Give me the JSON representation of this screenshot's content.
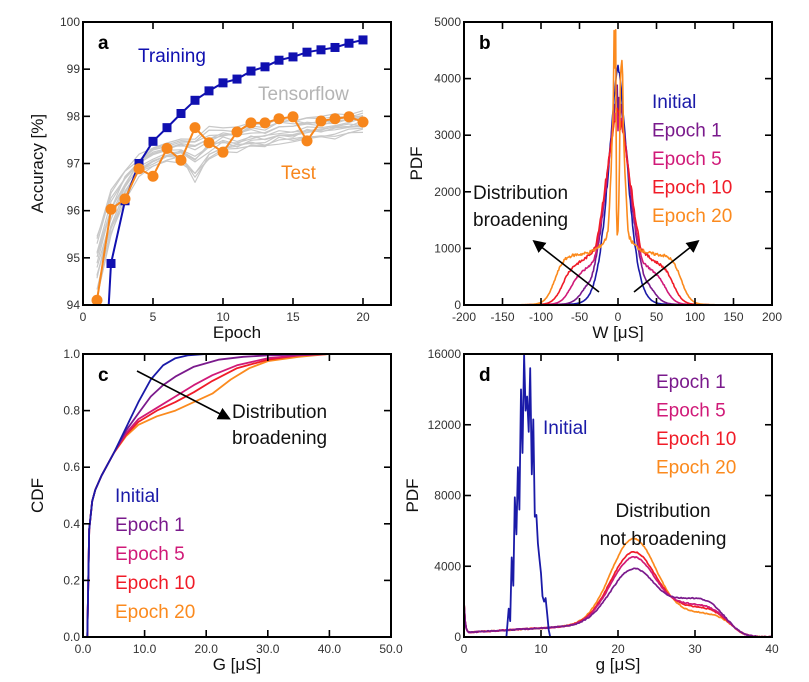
{
  "chart_data": [
    {
      "id": "a",
      "type": "line",
      "panel_label": "a",
      "xlabel": "Epoch",
      "ylabel": "Accuracy [%]",
      "xlim": [
        0,
        22
      ],
      "ylim": [
        94,
        100
      ],
      "xticks": [
        0,
        5,
        10,
        15,
        20
      ],
      "yticks": [
        94,
        95,
        96,
        97,
        98,
        99,
        100
      ],
      "series": [
        {
          "name": "Training",
          "color": "#1010b0",
          "marker": "square",
          "x": [
            2,
            3,
            4,
            5,
            6,
            7,
            8,
            9,
            10,
            11,
            12,
            13,
            14,
            15,
            16,
            17,
            18,
            19,
            20
          ],
          "y": [
            94.88,
            96.21,
            97.0,
            97.47,
            97.76,
            98.06,
            98.34,
            98.54,
            98.71,
            98.79,
            98.96,
            99.05,
            99.19,
            99.26,
            99.36,
            99.41,
            99.46,
            99.55,
            99.62
          ],
          "from_below_at_x": 1.8
        },
        {
          "name": "Test",
          "color": "#f7861c",
          "marker": "circle",
          "x": [
            1,
            2,
            3,
            4,
            5,
            6,
            7,
            8,
            9,
            10,
            11,
            12,
            13,
            14,
            15,
            16,
            17,
            18,
            19,
            20
          ],
          "y": [
            94.1,
            96.03,
            96.25,
            96.89,
            96.73,
            97.32,
            97.07,
            97.76,
            97.44,
            97.24,
            97.67,
            97.86,
            97.86,
            97.95,
            97.99,
            97.48,
            97.9,
            97.95,
            97.99,
            97.88
          ]
        },
        {
          "name": "Tensorflow",
          "color": "#c8c8c8",
          "marker": "none",
          "band": true,
          "x": [
            1,
            2,
            3,
            4,
            5,
            6,
            7,
            8,
            9,
            10,
            11,
            12,
            13,
            14,
            15,
            16,
            17,
            18,
            19,
            20
          ],
          "y_low": [
            94.0,
            95.4,
            96.2,
            96.7,
            96.9,
            97.0,
            97.0,
            96.6,
            97.0,
            97.2,
            97.2,
            97.3,
            97.3,
            97.4,
            97.4,
            97.5,
            97.5,
            97.5,
            97.6,
            97.6
          ],
          "y_high": [
            95.7,
            96.5,
            96.9,
            97.2,
            97.4,
            97.5,
            97.6,
            97.7,
            97.8,
            97.8,
            97.8,
            97.9,
            97.9,
            98.0,
            98.0,
            98.0,
            98.0,
            98.1,
            98.1,
            98.2
          ]
        }
      ],
      "annotations": [
        {
          "text": "Training",
          "color": "#1010b0"
        },
        {
          "text": "Tensorflow",
          "color": "#b4b4b4"
        },
        {
          "text": "Test",
          "color": "#f7861c"
        }
      ]
    },
    {
      "id": "b",
      "type": "line",
      "panel_label": "b",
      "xlabel": "W [μS]",
      "ylabel": "PDF",
      "xlim": [
        -200,
        200
      ],
      "ylim": [
        0,
        5000
      ],
      "xticks": [
        -200,
        -150,
        -100,
        -50,
        0,
        50,
        100,
        150,
        200
      ],
      "yticks": [
        0,
        1000,
        2000,
        3000,
        4000,
        5000
      ],
      "series": [
        {
          "name": "Initial",
          "color": "#1a1aa8",
          "peak": 4150,
          "width_sigma": 18,
          "shoulder": 0,
          "edge": 45
        },
        {
          "name": "Epoch 1",
          "color": "#7a1a8c",
          "peak": 3700,
          "width_sigma": 22,
          "shoulder": 350,
          "edge": 65
        },
        {
          "name": "Epoch 5",
          "color": "#d01a78",
          "peak": 3500,
          "width_sigma": 24,
          "shoulder": 550,
          "edge": 80
        },
        {
          "name": "Epoch 10",
          "color": "#f01c28",
          "peak": 3400,
          "width_sigma": 26,
          "shoulder": 700,
          "edge": 90
        },
        {
          "name": "Epoch 20",
          "color": "#fb8a1e",
          "peak": 4900,
          "width_sigma": 14,
          "shoulder": 880,
          "edge": 100
        }
      ],
      "annotations": [
        {
          "text": "Distribution"
        },
        {
          "text": "broadening"
        }
      ],
      "legend": "right"
    },
    {
      "id": "c",
      "type": "line",
      "panel_label": "c",
      "xlabel": "G [μS]",
      "ylabel": "CDF",
      "xlim": [
        0,
        50
      ],
      "ylim": [
        0.0,
        1.0
      ],
      "xticks": [
        0,
        10,
        20,
        30,
        40,
        50
      ],
      "yticks": [
        0.0,
        0.2,
        0.4,
        0.6,
        0.8,
        1.0
      ],
      "series": [
        {
          "name": "Initial",
          "color": "#1a1aa8",
          "x": [
            0,
            0.7,
            1,
            1.5,
            2,
            3,
            5,
            7,
            9,
            11,
            13,
            15,
            17,
            20,
            25,
            50
          ],
          "y": [
            0,
            0,
            0.38,
            0.48,
            0.52,
            0.57,
            0.65,
            0.74,
            0.83,
            0.91,
            0.96,
            0.985,
            0.995,
            1.0,
            1.0,
            1.0
          ]
        },
        {
          "name": "Epoch 1",
          "color": "#7a1a8c",
          "x": [
            0,
            0.7,
            1,
            1.5,
            2,
            3,
            5,
            7,
            9,
            11,
            13,
            15,
            18,
            22,
            26,
            30,
            40,
            50
          ],
          "y": [
            0,
            0,
            0.38,
            0.48,
            0.52,
            0.57,
            0.65,
            0.73,
            0.79,
            0.85,
            0.89,
            0.92,
            0.955,
            0.98,
            0.99,
            0.995,
            1.0,
            1.0
          ]
        },
        {
          "name": "Epoch 5",
          "color": "#d01a78",
          "x": [
            0,
            0.7,
            1,
            1.5,
            2,
            3,
            5,
            7,
            9,
            12,
            15,
            18,
            21,
            25,
            30,
            35,
            40,
            50
          ],
          "y": [
            0,
            0,
            0.38,
            0.48,
            0.52,
            0.57,
            0.65,
            0.72,
            0.77,
            0.81,
            0.85,
            0.89,
            0.925,
            0.96,
            0.985,
            0.995,
            1.0,
            1.0
          ]
        },
        {
          "name": "Epoch 10",
          "color": "#f01c28",
          "x": [
            0,
            0.7,
            1,
            1.5,
            2,
            3,
            5,
            7,
            9,
            12,
            15,
            18,
            21,
            25,
            30,
            35,
            40,
            50
          ],
          "y": [
            0,
            0,
            0.38,
            0.48,
            0.52,
            0.57,
            0.65,
            0.715,
            0.76,
            0.8,
            0.83,
            0.865,
            0.905,
            0.95,
            0.98,
            0.995,
            1.0,
            1.0
          ]
        },
        {
          "name": "Epoch 20",
          "color": "#fb8a1e",
          "x": [
            0,
            0.7,
            1,
            1.5,
            2,
            3,
            5,
            7,
            9,
            12,
            15,
            18,
            21,
            24,
            27,
            30,
            35,
            40,
            50
          ],
          "y": [
            0,
            0,
            0.38,
            0.48,
            0.52,
            0.57,
            0.65,
            0.71,
            0.75,
            0.78,
            0.8,
            0.83,
            0.86,
            0.91,
            0.95,
            0.975,
            0.99,
            1.0,
            1.0
          ]
        }
      ],
      "annotations": [
        {
          "text": "Distribution"
        },
        {
          "text": "broadening"
        }
      ],
      "legend": "bottom-left"
    },
    {
      "id": "d",
      "type": "line",
      "panel_label": "d",
      "xlabel": "g [μS]",
      "ylabel": "PDF",
      "xlim": [
        0,
        40
      ],
      "ylim": [
        0,
        16000
      ],
      "xticks": [
        0,
        10,
        20,
        30,
        40
      ],
      "yticks": [
        0,
        4000,
        8000,
        12000,
        16000
      ],
      "series": [
        {
          "name": "Initial",
          "color": "#1a1aa8",
          "x": [
            0,
            5.5,
            5.8,
            6.0,
            6.2,
            6.4,
            6.6,
            6.8,
            7.0,
            7.2,
            7.4,
            7.6,
            7.8,
            8.0,
            8.2,
            8.4,
            8.6,
            8.8,
            9.0,
            9.2,
            9.4,
            9.6,
            9.8,
            10.0,
            10.2,
            10.4,
            10.6,
            10.8,
            11.0,
            11.2,
            11.5,
            11.8,
            12.1,
            12.5
          ],
          "y": [
            0,
            0,
            1600,
            900,
            4500,
            2900,
            7900,
            5800,
            9600,
            7200,
            14000,
            10400,
            16000,
            12800,
            13600,
            11600,
            15200,
            9200,
            12300,
            6800,
            6900,
            5300,
            4400,
            3600,
            2300,
            2000,
            2200,
            1300,
            400,
            0,
            0,
            0,
            0,
            0
          ]
        },
        {
          "name": "Epoch 1",
          "color": "#7a1a8c",
          "peak": 3050,
          "tail": 1250
        },
        {
          "name": "Epoch 5",
          "color": "#d01a78",
          "peak": 3700,
          "tail": 850
        },
        {
          "name": "Epoch 10",
          "color": "#f01c28",
          "peak": 4000,
          "tail": 700
        },
        {
          "name": "Epoch 20",
          "color": "#fb8a1e",
          "peak": 4750,
          "tail": 350
        }
      ],
      "annotations": [
        {
          "text": "Initial",
          "color": "#1a1aa8"
        },
        {
          "text": "Distribution"
        },
        {
          "text": "not broadening"
        }
      ],
      "legend": "top-right"
    }
  ]
}
